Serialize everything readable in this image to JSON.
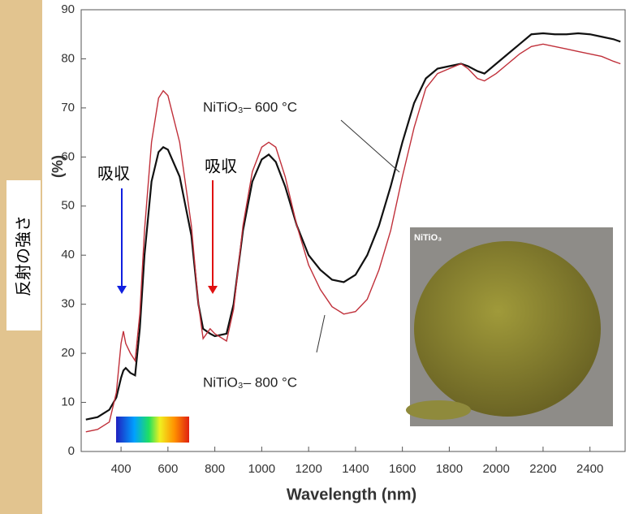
{
  "chart_data": {
    "type": "line",
    "x_label": "Wavelength (nm)",
    "y_label": "(%)",
    "y_label_overlay": "反射の強さ",
    "x": [
      250,
      300,
      350,
      380,
      400,
      410,
      420,
      440,
      460,
      480,
      500,
      530,
      560,
      580,
      600,
      650,
      700,
      730,
      750,
      780,
      800,
      850,
      880,
      920,
      960,
      1000,
      1030,
      1060,
      1100,
      1150,
      1200,
      1250,
      1300,
      1350,
      1400,
      1450,
      1500,
      1550,
      1600,
      1650,
      1700,
      1750,
      1800,
      1850,
      1880,
      1920,
      1950,
      2000,
      2050,
      2100,
      2150,
      2200,
      2250,
      2300,
      2350,
      2400,
      2450,
      2500,
      2530
    ],
    "series": [
      {
        "name": "NiTiO₃– 600 °C",
        "color": "#111111",
        "values": [
          6.5,
          7,
          8.5,
          11,
          15,
          16.5,
          17,
          16,
          15.5,
          25,
          40,
          55,
          61,
          62,
          61.5,
          56,
          44,
          30,
          25,
          24,
          23.5,
          24,
          30,
          45,
          55,
          59.5,
          60.5,
          59,
          54,
          46,
          40,
          37,
          35,
          34.5,
          36,
          40,
          46,
          54,
          63,
          71,
          76,
          78,
          78.5,
          79,
          78.5,
          77.5,
          77,
          79,
          81,
          83,
          85,
          85.2,
          85,
          85,
          85.2,
          85,
          84.5,
          84,
          83.5
        ]
      },
      {
        "name": "NiTiO₃– 800 °C",
        "color": "#c0303a",
        "values": [
          4,
          4.5,
          6,
          12,
          22,
          24.5,
          22,
          20,
          18.5,
          28,
          45,
          63,
          72,
          73.5,
          72.5,
          63,
          46,
          30,
          23,
          25,
          24,
          22.5,
          29,
          46,
          57,
          62,
          63,
          62,
          56,
          46,
          38,
          33,
          29.5,
          28,
          28.5,
          31,
          37,
          45,
          56,
          66,
          74,
          77,
          78,
          79,
          78,
          76,
          75.5,
          77,
          79,
          81,
          82.5,
          83,
          82.5,
          82,
          81.5,
          81,
          80.5,
          79.5,
          79
        ]
      }
    ],
    "annotations": [
      {
        "text": "吸収",
        "color": "#1020e0"
      },
      {
        "text": "吸収",
        "color": "#e01010"
      }
    ],
    "inset_label": "NiTiO₃",
    "xlim": [
      230,
      2550
    ],
    "ylim": [
      0,
      90
    ],
    "xticks": [
      400,
      600,
      800,
      1000,
      1200,
      1400,
      1600,
      1800,
      2000,
      2200,
      2400
    ],
    "yticks": [
      0,
      10,
      20,
      30,
      40,
      50,
      60,
      70,
      80,
      90
    ]
  }
}
